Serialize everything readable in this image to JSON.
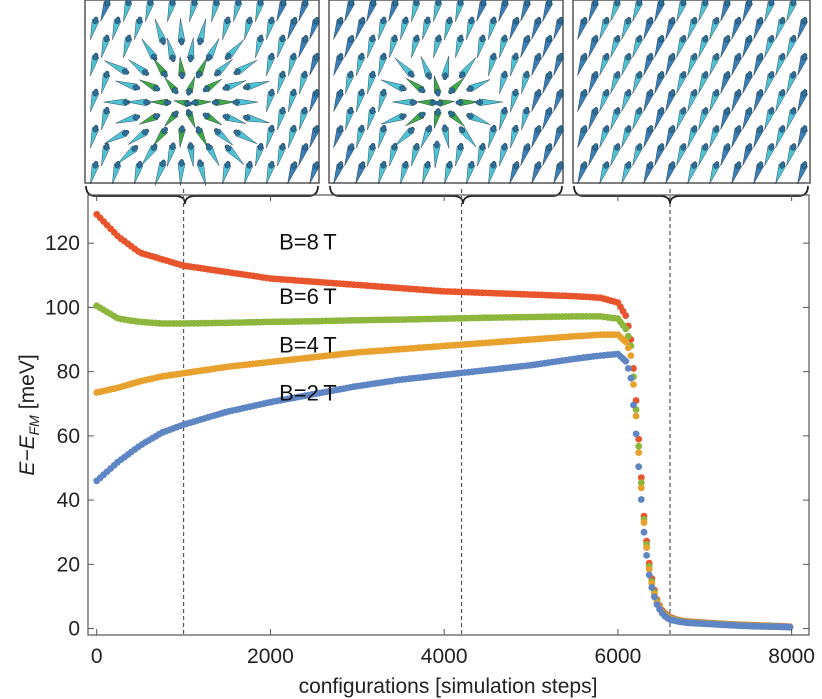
{
  "chart_data": {
    "type": "scatter",
    "title": "",
    "xlabel": "configurations [simulation steps]",
    "ylabel": {
      "main": "E−E",
      "subscript": "FM",
      "unit": "[meV]"
    },
    "xlim": [
      -100,
      8200
    ],
    "ylim": [
      -2,
      135
    ],
    "xticks": [
      0,
      2000,
      4000,
      6000,
      8000
    ],
    "yticks": [
      0,
      20,
      40,
      60,
      80,
      100,
      120
    ],
    "grid": false,
    "marker_lines_x": [
      1000,
      4200,
      6600
    ],
    "snapshot_panels": [
      {
        "name": "snapshot-1000",
        "config": 1000,
        "range": [
          0,
          2600
        ],
        "state": "skyrmion"
      },
      {
        "name": "snapshot-4200",
        "config": 4200,
        "range": [
          2800,
          5600
        ],
        "state": "skyrmion (smaller)"
      },
      {
        "name": "snapshot-6600",
        "config": 6600,
        "range": [
          5800,
          8000
        ],
        "state": "ferromagnetic"
      }
    ],
    "colors": {
      "B8": "#e8542c",
      "B6": "#8cb63c",
      "B4": "#e8a12c",
      "B2": "#5f86c4",
      "arrow_blue": "#3a7fb8",
      "arrow_cyan": "#4fc3d6",
      "arrow_green": "#3faa48"
    },
    "series": [
      {
        "name": "B=8 T",
        "label": "B=8 T",
        "color": "#e8542c",
        "x": [
          0,
          250,
          500,
          750,
          1000,
          1500,
          2000,
          2500,
          3000,
          3500,
          4000,
          4500,
          5000,
          5500,
          5800,
          6000,
          6100,
          6150,
          6200,
          6250,
          6300,
          6350,
          6400,
          6450,
          6500,
          6550,
          6600,
          6700,
          6800,
          7000,
          7200,
          7400,
          7600,
          7800,
          8000
        ],
        "values": [
          129,
          122,
          117,
          115,
          113,
          111,
          109,
          108,
          107,
          106,
          105,
          104.5,
          104,
          103.5,
          103,
          101.5,
          97,
          90,
          75,
          55,
          35,
          22,
          14,
          9,
          6,
          4.5,
          3.5,
          2.6,
          2.2,
          1.8,
          1.5,
          1.2,
          1.0,
          0.8,
          0.6
        ]
      },
      {
        "name": "B=6 T",
        "label": "B=6 T",
        "color": "#8cb63c",
        "x": [
          0,
          250,
          500,
          750,
          1000,
          1500,
          2000,
          2500,
          3000,
          3500,
          4000,
          4500,
          5000,
          5500,
          5800,
          6000,
          6100,
          6150,
          6200,
          6250,
          6300,
          6350,
          6400,
          6450,
          6500,
          6550,
          6600,
          6700,
          6800,
          7000,
          7200,
          7400,
          7600,
          7800,
          8000
        ],
        "values": [
          100.5,
          96.5,
          95.5,
          95,
          95,
          95.2,
          95.5,
          95.7,
          96,
          96.2,
          96.5,
          96.8,
          97,
          97.2,
          97.2,
          96.5,
          93,
          88,
          72,
          53,
          34,
          21,
          13,
          8.5,
          5.5,
          4,
          3.2,
          2.5,
          2.0,
          1.7,
          1.4,
          1.1,
          0.9,
          0.7,
          0.5
        ]
      },
      {
        "name": "B=4 T",
        "label": "B=4 T",
        "color": "#e8a12c",
        "x": [
          0,
          250,
          500,
          750,
          1000,
          1500,
          2000,
          2500,
          3000,
          3500,
          4000,
          4500,
          5000,
          5500,
          5800,
          6000,
          6100,
          6150,
          6200,
          6250,
          6300,
          6350,
          6400,
          6450,
          6500,
          6550,
          6600,
          6700,
          6800,
          7000,
          7200,
          7400,
          7600,
          7800,
          8000
        ],
        "values": [
          73.5,
          75,
          77,
          78.5,
          79.5,
          81.5,
          83,
          84.5,
          86,
          87,
          88,
          89,
          90,
          91,
          91.5,
          91.5,
          89,
          85,
          70,
          51,
          33,
          20,
          12.5,
          8,
          5.2,
          3.8,
          3.0,
          2.4,
          1.9,
          1.6,
          1.3,
          1.0,
          0.8,
          0.6,
          0.5
        ]
      },
      {
        "name": "B=2 T",
        "label": "B=2 T",
        "color": "#5f86c4",
        "x": [
          0,
          250,
          500,
          750,
          1000,
          1500,
          2000,
          2500,
          3000,
          3500,
          4000,
          4500,
          5000,
          5500,
          5800,
          6000,
          6100,
          6150,
          6200,
          6250,
          6300,
          6350,
          6400,
          6450,
          6500,
          6550,
          6600,
          6700,
          6800,
          7000,
          7200,
          7400,
          7600,
          7800,
          8000
        ],
        "values": [
          46,
          52,
          57,
          61,
          63.5,
          67.5,
          70.5,
          73,
          75.5,
          77.5,
          79,
          80.5,
          82,
          84,
          85,
          85.5,
          83,
          78,
          64,
          47,
          30,
          18,
          11.5,
          7.5,
          5,
          3.6,
          2.8,
          2.2,
          1.8,
          1.5,
          1.2,
          0.9,
          0.7,
          0.6,
          0.4
        ]
      }
    ]
  }
}
